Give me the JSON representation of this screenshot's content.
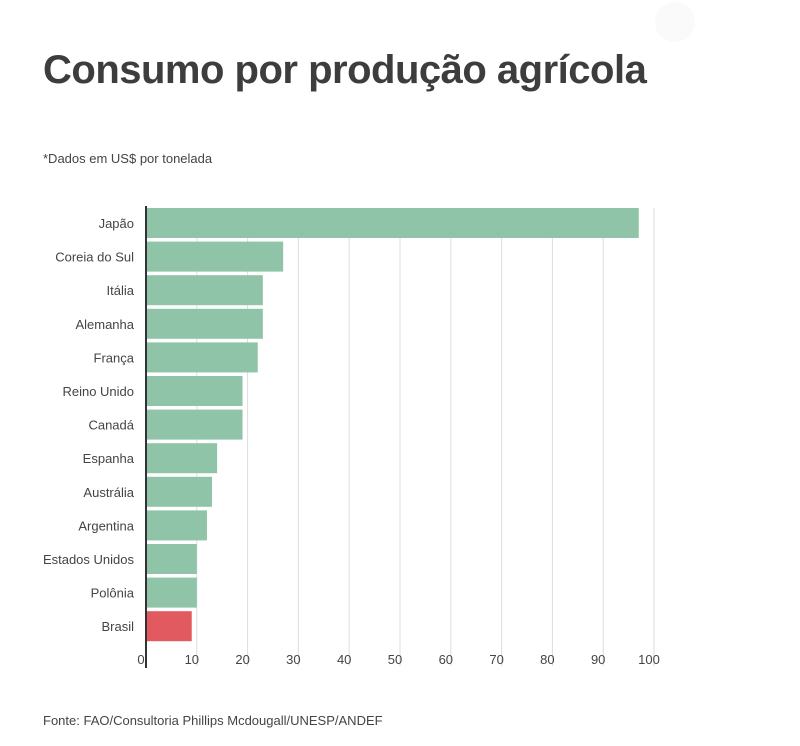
{
  "title": "Consumo por produção agrícola",
  "subtitle": "*Dados em US$ por tonelada",
  "source": "Fonte: FAO/Consultoria Phillips Mcdougall/UNESP/ANDEF",
  "colors": {
    "bar": "#8fc4a8",
    "highlight": "#e05a5f",
    "grid": "#dddddd",
    "axis": "#333333"
  },
  "chart_data": {
    "type": "bar",
    "orientation": "horizontal",
    "categories": [
      "Japão",
      "Coreia do Sul",
      "Itália",
      "Alemanha",
      "França",
      "Reino Unido",
      "Canadá",
      "Espanha",
      "Austrália",
      "Argentina",
      "Estados Unidos",
      "Polônia",
      "Brasil"
    ],
    "values": [
      97,
      27,
      23,
      23,
      22,
      19,
      19,
      14,
      13,
      12,
      10,
      10,
      9
    ],
    "highlight": "Brasil",
    "xlim": [
      0,
      100
    ],
    "xticks": [
      0,
      10,
      20,
      30,
      40,
      50,
      60,
      70,
      80,
      90,
      100
    ],
    "grid": true,
    "xlabel": "",
    "ylabel": ""
  }
}
